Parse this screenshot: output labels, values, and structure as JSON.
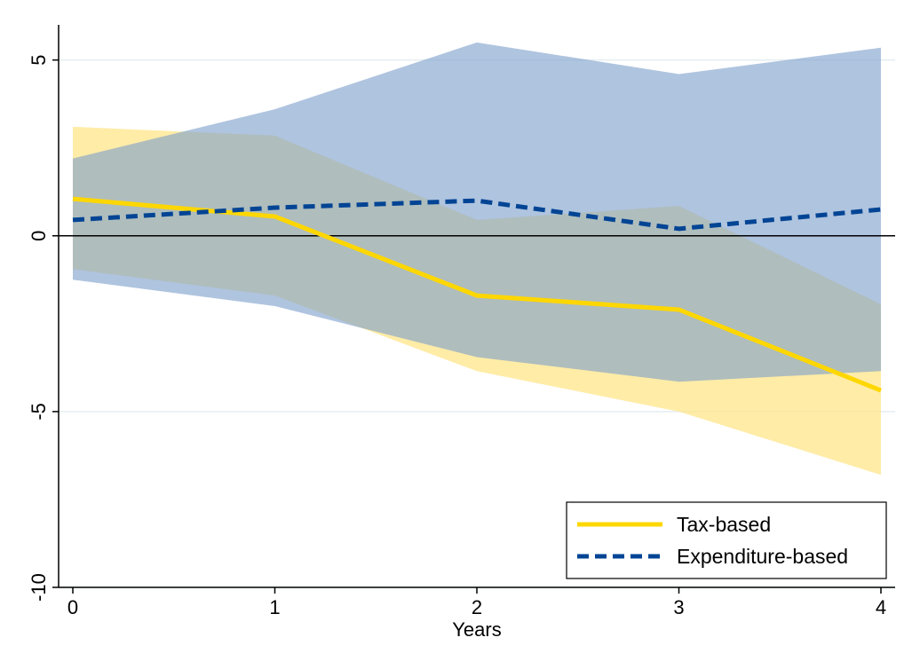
{
  "chart_data": {
    "type": "line",
    "xlabel": "Years",
    "ylabel": "",
    "x": [
      0,
      1,
      2,
      3,
      4
    ],
    "xlim": [
      0,
      4
    ],
    "ylim": [
      -10,
      6
    ],
    "xticks": [
      "0",
      "1",
      "2",
      "3",
      "4"
    ],
    "yticks": [
      {
        "value": 5,
        "label": "5"
      },
      {
        "value": 0,
        "label": "0"
      },
      {
        "value": -5,
        "label": "-5"
      },
      {
        "value": -10,
        "label": "-10"
      }
    ],
    "grid": true,
    "zero_line": true,
    "legend_position": "bottom-right",
    "series": [
      {
        "name": "Tax-based",
        "style": "solid",
        "color": "#FFD700",
        "band_color": "#FFE58A",
        "values": [
          1.05,
          0.55,
          -1.7,
          -2.1,
          -4.4
        ],
        "upper": [
          3.1,
          2.85,
          0.45,
          0.85,
          -1.95
        ],
        "lower": [
          -0.95,
          -1.7,
          -3.85,
          -5.0,
          -6.8
        ]
      },
      {
        "name": "Expenditure-based",
        "style": "dashed",
        "color": "#024494",
        "band_color": "#7E9FCB",
        "values": [
          0.45,
          0.8,
          1.0,
          0.2,
          0.75
        ],
        "upper": [
          2.2,
          3.6,
          5.5,
          4.6,
          5.35
        ],
        "lower": [
          -1.25,
          -2.0,
          -3.45,
          -4.15,
          -3.85
        ]
      }
    ]
  }
}
